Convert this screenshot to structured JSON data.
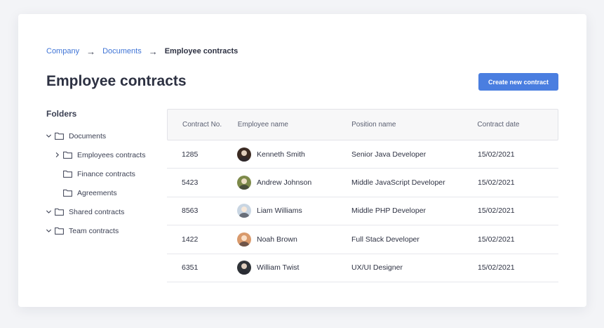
{
  "breadcrumb": {
    "items": [
      "Company",
      "Documents"
    ],
    "separator": "→",
    "current": "Employee contracts"
  },
  "page": {
    "title": "Employee contracts",
    "create_button_label": "Create new contract"
  },
  "folders": {
    "title": "Folders",
    "tree": [
      {
        "label": "Documents",
        "expanded": true,
        "icon": "chevron-down-icon"
      },
      {
        "label": "Employees contracts",
        "expanded": false,
        "icon": "chevron-right-icon"
      },
      {
        "label": "Finance contracts"
      },
      {
        "label": "Agreements"
      },
      {
        "label": "Shared contracts",
        "expanded": true,
        "icon": "chevron-down-icon"
      },
      {
        "label": "Team contracts",
        "expanded": true,
        "icon": "chevron-down-icon"
      }
    ]
  },
  "table": {
    "columns": [
      "Contract No.",
      "Employee name",
      "Position name",
      "Contract date"
    ],
    "rows": [
      {
        "number": "1285",
        "name": "Kenneth Smith",
        "position": "Senior Java Developer",
        "date": "15/02/2021",
        "avatar_color": "#3b2a22"
      },
      {
        "number": "5423",
        "name": "Andrew Johnson",
        "position": "Middle JavaScript Developer",
        "date": "15/02/2021",
        "avatar_color": "#7d8a4a"
      },
      {
        "number": "8563",
        "name": "Liam Williams",
        "position": "Middle PHP Developer",
        "date": "15/02/2021",
        "avatar_color": "#c9d6e3"
      },
      {
        "number": "1422",
        "name": "Noah Brown",
        "position": "Full Stack Developer",
        "date": "15/02/2021",
        "avatar_color": "#d99a6c"
      },
      {
        "number": "6351",
        "name": "William Twist",
        "position": "UX/UI Designer",
        "date": "15/02/2021",
        "avatar_color": "#2f3338"
      }
    ]
  },
  "colors": {
    "accent": "#4a7ee0",
    "link": "#3f74d6",
    "text": "#2d3142"
  }
}
